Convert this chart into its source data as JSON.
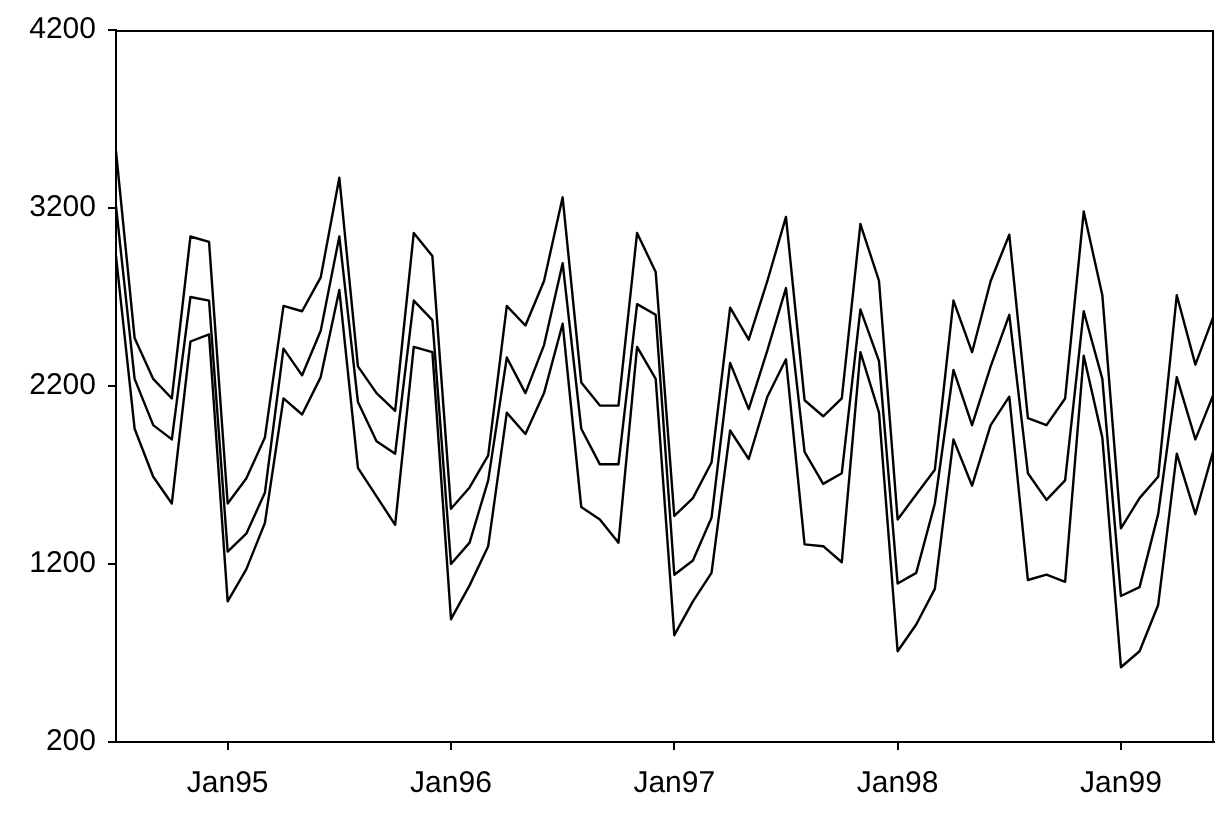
{
  "chart_data": {
    "type": "line",
    "x": [
      "1994-07",
      "1994-08",
      "1994-09",
      "1994-10",
      "1994-11",
      "1994-12",
      "1995-01",
      "1995-02",
      "1995-03",
      "1995-04",
      "1995-05",
      "1995-06",
      "1995-07",
      "1995-08",
      "1995-09",
      "1995-10",
      "1995-11",
      "1995-12",
      "1996-01",
      "1996-02",
      "1996-03",
      "1996-04",
      "1996-05",
      "1996-06",
      "1996-07",
      "1996-08",
      "1996-09",
      "1996-10",
      "1996-11",
      "1996-12",
      "1997-01",
      "1997-02",
      "1997-03",
      "1997-04",
      "1997-05",
      "1997-06",
      "1997-07",
      "1997-08",
      "1997-09",
      "1997-10",
      "1997-11",
      "1997-12",
      "1998-01",
      "1998-02",
      "1998-03",
      "1998-04",
      "1998-05",
      "1998-06",
      "1998-07",
      "1998-08",
      "1998-09",
      "1998-10",
      "1998-11",
      "1998-12",
      "1999-01",
      "1999-02",
      "1999-03",
      "1999-04",
      "1999-05",
      "1999-06"
    ],
    "series": [
      {
        "color": "#000000",
        "values": [
          3520,
          2470,
          2240,
          2130,
          3040,
          3010,
          1540,
          1680,
          1910,
          2650,
          2620,
          2810,
          3370,
          2310,
          2160,
          2060,
          3060,
          2930,
          1510,
          1630,
          1810,
          2650,
          2540,
          2790,
          3260,
          2220,
          2090,
          2090,
          3060,
          2840,
          1470,
          1570,
          1770,
          2640,
          2460,
          2790,
          3150,
          2120,
          2030,
          2130,
          3110,
          2790,
          1450,
          1590,
          1730,
          2680,
          2390,
          2790,
          3050,
          2020,
          1980,
          2130,
          3180,
          2710,
          1400,
          1570,
          1690,
          2710,
          2320,
          2600
        ]
      },
      {
        "color": "#000000",
        "values": [
          3210,
          2240,
          1980,
          1900,
          2700,
          2680,
          1270,
          1370,
          1600,
          2410,
          2260,
          2510,
          3040,
          2110,
          1890,
          1820,
          2680,
          2570,
          1200,
          1320,
          1670,
          2360,
          2160,
          2430,
          2890,
          1960,
          1760,
          1760,
          2660,
          2600,
          1140,
          1220,
          1460,
          2330,
          2070,
          2400,
          2750,
          1830,
          1650,
          1710,
          2630,
          2340,
          1090,
          1150,
          1540,
          2290,
          1980,
          2310,
          2600,
          1710,
          1560,
          1670,
          2620,
          2240,
          1020,
          1070,
          1480,
          2250,
          1900,
          2160
        ]
      },
      {
        "color": "#000000",
        "values": [
          2930,
          1960,
          1690,
          1540,
          2450,
          2490,
          990,
          1170,
          1430,
          2130,
          2040,
          2250,
          2740,
          1740,
          1580,
          1420,
          2420,
          2390,
          890,
          1080,
          1300,
          2050,
          1930,
          2160,
          2550,
          1520,
          1450,
          1320,
          2420,
          2240,
          800,
          990,
          1150,
          1950,
          1790,
          2140,
          2350,
          1310,
          1300,
          1210,
          2390,
          2050,
          710,
          860,
          1060,
          1900,
          1640,
          1980,
          2140,
          1110,
          1140,
          1100,
          2370,
          1910,
          620,
          710,
          970,
          1820,
          1480,
          1850
        ]
      }
    ],
    "xlim": [
      "1994-07",
      "1999-06"
    ],
    "xticks": [
      {
        "value": "1995-01",
        "label": "Jan95"
      },
      {
        "value": "1996-01",
        "label": "Jan96"
      },
      {
        "value": "1997-01",
        "label": "Jan97"
      },
      {
        "value": "1998-01",
        "label": "Jan98"
      },
      {
        "value": "1999-01",
        "label": "Jan99"
      }
    ],
    "ylim": [
      200,
      4200
    ],
    "yticks": [
      200,
      1200,
      2200,
      3200,
      4200
    ],
    "grid": false,
    "legend": false,
    "marker": "none",
    "line_style": "solid"
  }
}
